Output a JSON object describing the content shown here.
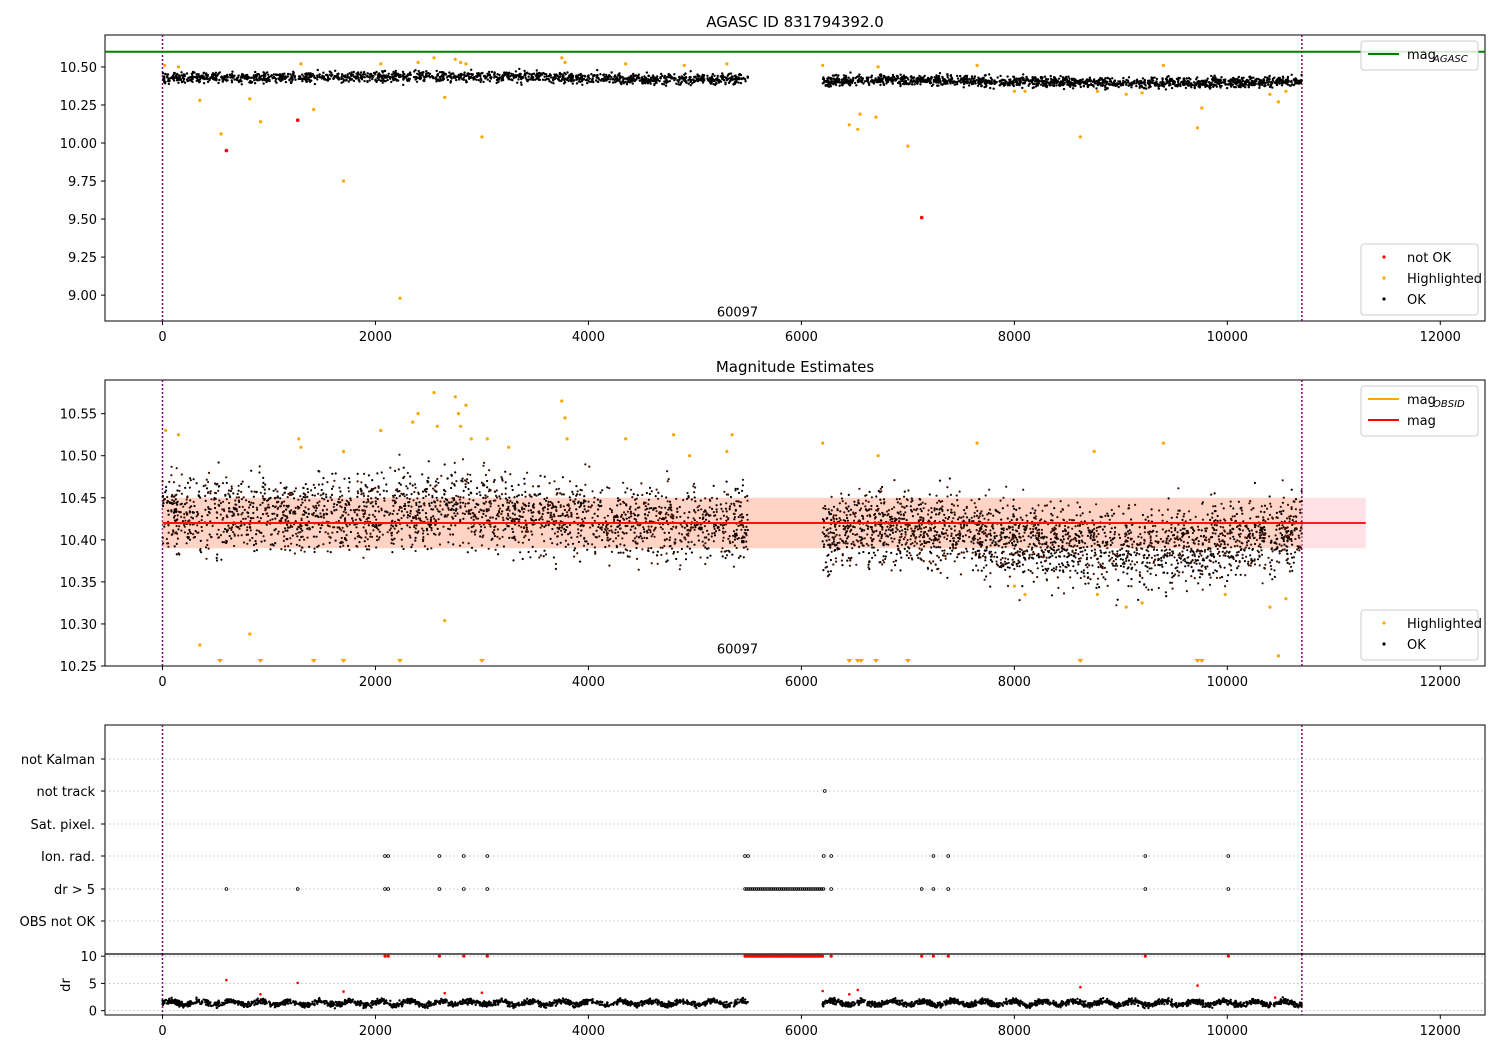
{
  "chart_data": [
    {
      "id": "top",
      "type": "scatter",
      "title": "AGASC ID 831794392.0",
      "xlabel": "",
      "ylabel": "",
      "xlim": [
        -540,
        12420
      ],
      "ylim": [
        8.83,
        10.71
      ],
      "xticks": [
        0,
        2000,
        4000,
        6000,
        8000,
        10000,
        12000
      ],
      "xtick_labels": [
        "0",
        "2000",
        "4000",
        "6000",
        "8000",
        "10000",
        "12000"
      ],
      "yticks": [
        9.0,
        9.25,
        9.5,
        9.75,
        10.0,
        10.25,
        10.5
      ],
      "ytick_labels": [
        "9.00",
        "9.25",
        "9.50",
        "9.75",
        "10.00",
        "10.25",
        "10.50"
      ],
      "annotation": "60097",
      "annotation_pos": [
        5400,
        8.86
      ],
      "vlines": [
        0,
        10700
      ],
      "hlines": [
        {
          "y": 10.6,
          "color": "#008000",
          "name": "mag_AGASC"
        }
      ],
      "legends": [
        {
          "position": "upper right",
          "entries": [
            {
              "label": "mag",
              "sub": "AGASC",
              "kind": "line",
              "color": "#008000"
            }
          ]
        },
        {
          "position": "lower right",
          "entries": [
            {
              "label": "not OK",
              "kind": "dot",
              "color": "#ff0000"
            },
            {
              "label": "Highlighted",
              "kind": "dot",
              "color": "#ffa500"
            },
            {
              "label": "OK",
              "kind": "dot",
              "color": "#000000"
            }
          ]
        }
      ],
      "ok_series": {
        "color": "#000000",
        "segments": [
          {
            "x0": 0,
            "x1": 5500,
            "knots": [
              [
                0,
                10.43
              ],
              [
                1500,
                10.43
              ],
              [
                2500,
                10.44
              ],
              [
                3500,
                10.435
              ],
              [
                4500,
                10.42
              ],
              [
                5500,
                10.42
              ]
            ],
            "spread": 0.035
          },
          {
            "x0": 6200,
            "x1": 10700,
            "knots": [
              [
                6200,
                10.41
              ],
              [
                7000,
                10.415
              ],
              [
                8000,
                10.405
              ],
              [
                9000,
                10.395
              ],
              [
                10000,
                10.395
              ],
              [
                10700,
                10.41
              ]
            ],
            "spread": 0.035
          }
        ]
      },
      "highlighted": {
        "color": "#ffa500",
        "points": [
          [
            20,
            10.51
          ],
          [
            150,
            10.5
          ],
          [
            350,
            10.28
          ],
          [
            550,
            10.06
          ],
          [
            820,
            10.29
          ],
          [
            920,
            10.14
          ],
          [
            1420,
            10.22
          ],
          [
            1700,
            9.75
          ],
          [
            2230,
            8.98
          ],
          [
            2650,
            10.3
          ],
          [
            3000,
            10.04
          ],
          [
            6450,
            10.12
          ],
          [
            6530,
            10.09
          ],
          [
            6550,
            10.19
          ],
          [
            6700,
            10.17
          ],
          [
            7000,
            9.98
          ],
          [
            8620,
            10.04
          ],
          [
            9720,
            10.1
          ],
          [
            9760,
            10.23
          ],
          [
            10480,
            10.27
          ],
          [
            10400,
            10.32
          ],
          [
            10550,
            10.34
          ],
          [
            2400,
            10.53
          ],
          [
            2550,
            10.56
          ],
          [
            2750,
            10.55
          ],
          [
            2800,
            10.53
          ],
          [
            2850,
            10.52
          ],
          [
            3750,
            10.56
          ],
          [
            3780,
            10.53
          ],
          [
            1300,
            10.52
          ],
          [
            2050,
            10.52
          ],
          [
            4350,
            10.52
          ],
          [
            4900,
            10.51
          ],
          [
            5300,
            10.52
          ],
          [
            6200,
            10.51
          ],
          [
            6720,
            10.5
          ],
          [
            7650,
            10.51
          ],
          [
            9400,
            10.51
          ],
          [
            8000,
            10.34
          ],
          [
            8100,
            10.34
          ],
          [
            8780,
            10.34
          ],
          [
            9050,
            10.32
          ],
          [
            9200,
            10.33
          ]
        ]
      },
      "not_ok": {
        "color": "#ff0000",
        "points": [
          [
            600,
            9.95
          ],
          [
            1270,
            10.15
          ],
          [
            7130,
            9.51
          ]
        ]
      }
    },
    {
      "id": "middle",
      "type": "scatter",
      "title": "Magnitude Estimates",
      "xlabel": "",
      "ylabel": "",
      "xlim": [
        -540,
        12420
      ],
      "ylim": [
        10.25,
        10.59
      ],
      "xticks": [
        0,
        2000,
        4000,
        6000,
        8000,
        10000,
        12000
      ],
      "xtick_labels": [
        "0",
        "2000",
        "4000",
        "6000",
        "8000",
        "10000",
        "12000"
      ],
      "yticks": [
        10.25,
        10.3,
        10.35,
        10.4,
        10.45,
        10.5,
        10.55
      ],
      "ytick_labels": [
        "10.25",
        "10.30",
        "10.35",
        "10.40",
        "10.45",
        "10.50",
        "10.55"
      ],
      "annotation": "60097",
      "annotation_pos": [
        5400,
        10.26
      ],
      "vlines": [
        0,
        10700
      ],
      "mag_value": 10.42,
      "mag_band": {
        "y0": 10.39,
        "y1": 10.45,
        "x0": 0,
        "x1": 11300,
        "color": "#ff9aa8"
      },
      "obsid_band": {
        "y0": 10.39,
        "y1": 10.45,
        "x0": 0,
        "x1": 10700,
        "color": "#ffb98a"
      },
      "mag_line_color": "#ff0000",
      "obsid_line_color": "#ffa500",
      "legends": [
        {
          "position": "upper right",
          "entries": [
            {
              "label": "mag",
              "sub": "OBSID",
              "kind": "line",
              "color": "#ffa500"
            },
            {
              "label": "mag",
              "kind": "line",
              "color": "#ff0000"
            }
          ]
        },
        {
          "position": "lower right",
          "entries": [
            {
              "label": "Highlighted",
              "kind": "dot",
              "color": "#ffa500"
            },
            {
              "label": "OK",
              "kind": "dot",
              "color": "#000000"
            }
          ]
        }
      ],
      "ok_series": {
        "color": "#000000",
        "fill": "#3a0f00",
        "segments": [
          {
            "x0": 0,
            "x1": 5500,
            "knots": [
              [
                0,
                10.43
              ],
              [
                1500,
                10.43
              ],
              [
                2500,
                10.44
              ],
              [
                3500,
                10.43
              ],
              [
                4500,
                10.42
              ],
              [
                5500,
                10.42
              ]
            ],
            "spread": 0.045
          },
          {
            "x0": 6200,
            "x1": 10700,
            "knots": [
              [
                6200,
                10.41
              ],
              [
                7000,
                10.415
              ],
              [
                8000,
                10.4
              ],
              [
                9000,
                10.39
              ],
              [
                10000,
                10.395
              ],
              [
                10700,
                10.41
              ]
            ],
            "spread": 0.045
          }
        ]
      },
      "highlighted": {
        "color": "#ffa500",
        "points": [
          [
            30,
            10.53
          ],
          [
            150,
            10.525
          ],
          [
            350,
            10.275
          ],
          [
            820,
            10.288
          ],
          [
            2650,
            10.304
          ],
          [
            1280,
            10.52
          ],
          [
            1300,
            10.51
          ],
          [
            1700,
            10.505
          ],
          [
            2050,
            10.53
          ],
          [
            2350,
            10.54
          ],
          [
            2400,
            10.55
          ],
          [
            2550,
            10.575
          ],
          [
            2580,
            10.535
          ],
          [
            2750,
            10.57
          ],
          [
            2780,
            10.55
          ],
          [
            2800,
            10.535
          ],
          [
            2850,
            10.56
          ],
          [
            2900,
            10.52
          ],
          [
            3050,
            10.52
          ],
          [
            3250,
            10.51
          ],
          [
            3750,
            10.565
          ],
          [
            3780,
            10.545
          ],
          [
            3800,
            10.52
          ],
          [
            4350,
            10.52
          ],
          [
            4800,
            10.525
          ],
          [
            4950,
            10.5
          ],
          [
            5300,
            10.505
          ],
          [
            5350,
            10.525
          ],
          [
            6200,
            10.515
          ],
          [
            6720,
            10.5
          ],
          [
            7650,
            10.515
          ],
          [
            8750,
            10.505
          ],
          [
            9400,
            10.515
          ],
          [
            8000,
            10.345
          ],
          [
            8100,
            10.335
          ],
          [
            8780,
            10.335
          ],
          [
            9050,
            10.32
          ],
          [
            9200,
            10.325
          ],
          [
            9980,
            10.335
          ],
          [
            10400,
            10.32
          ],
          [
            10480,
            10.262
          ],
          [
            10550,
            10.33
          ]
        ]
      },
      "below_markers": {
        "color": "#ffa500",
        "x": [
          540,
          920,
          1420,
          1700,
          2230,
          3000,
          6450,
          6530,
          6560,
          6700,
          7000,
          8620,
          9720,
          9760
        ]
      }
    },
    {
      "id": "flags",
      "type": "scatter",
      "title": "",
      "xlim": [
        -540,
        12420
      ],
      "categories": [
        "not Kalman",
        "not track",
        "Sat. pixel.",
        "Ion. rad.",
        "dr > 5",
        "OBS not OK"
      ],
      "vlines": [
        0,
        10700
      ],
      "flag_points": [
        {
          "category": "not track",
          "x": [
            6220
          ]
        },
        {
          "category": "Ion. rad.",
          "x": [
            2090,
            2120,
            2600,
            2830,
            3050,
            5470,
            5500,
            6210,
            6280,
            7240,
            7380,
            9230,
            10010
          ]
        },
        {
          "category": "dr > 5",
          "x": [
            600,
            1270,
            2090,
            2120,
            2600,
            2830,
            3050,
            6280,
            7130,
            7240,
            7380,
            9230,
            10010
          ],
          "range": [
            5470,
            6210
          ]
        }
      ]
    },
    {
      "id": "dr",
      "type": "scatter",
      "title": "",
      "xlabel": "",
      "ylabel": "dr",
      "xlim": [
        -540,
        12420
      ],
      "ylim": [
        -0.8,
        10.4
      ],
      "xticks": [
        0,
        2000,
        4000,
        6000,
        8000,
        10000,
        12000
      ],
      "xtick_labels": [
        "0",
        "2000",
        "4000",
        "6000",
        "8000",
        "10000",
        "12000"
      ],
      "yticks": [
        0,
        5,
        10
      ],
      "ytick_labels": [
        "0",
        "5",
        "10"
      ],
      "vlines": [
        0,
        10700
      ],
      "ok_series": {
        "color": "#000000",
        "segments": [
          {
            "x0": 0,
            "x1": 5500,
            "mean": 1.4,
            "spread": 0.5
          },
          {
            "x0": 6200,
            "x1": 10700,
            "mean": 1.4,
            "spread": 0.5
          }
        ]
      },
      "red_at_ten": {
        "color": "#ff0000",
        "x": [
          2090,
          2120,
          2600,
          2830,
          3050,
          6280,
          7130,
          7240,
          7380,
          9230,
          10010
        ],
        "range": [
          5470,
          6210
        ],
        "y": 10
      },
      "red_scatter": {
        "color": "#ff0000",
        "points": [
          [
            600,
            5.6
          ],
          [
            920,
            3.0
          ],
          [
            1270,
            5.1
          ],
          [
            1700,
            3.5
          ],
          [
            2650,
            3.2
          ],
          [
            3000,
            3.3
          ],
          [
            6200,
            3.6
          ],
          [
            6450,
            3.0
          ],
          [
            6530,
            3.8
          ],
          [
            8620,
            4.3
          ],
          [
            9720,
            4.6
          ],
          [
            10450,
            2.4
          ]
        ]
      }
    }
  ]
}
